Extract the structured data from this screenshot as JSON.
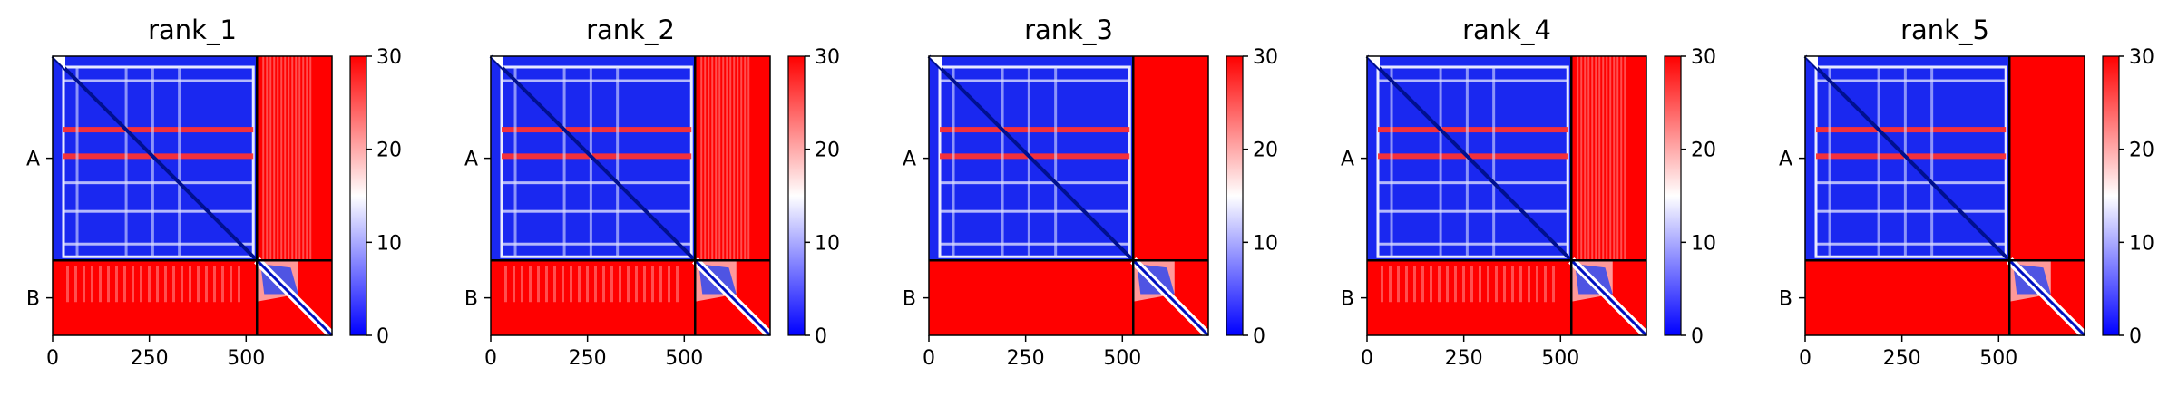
{
  "chart_data": [
    {
      "type": "heatmap",
      "title": "rank_1",
      "x_ticks": [
        0,
        250,
        500
      ],
      "xlim": [
        0,
        722
      ],
      "y_tick_labels": [
        "A",
        "B"
      ],
      "chain_boundary": 528,
      "colorbar": {
        "ticks": [
          0,
          10,
          20,
          30
        ],
        "range": [
          0,
          30
        ],
        "colors": [
          "#0000ff",
          "#ffffff",
          "#ff0000"
        ]
      },
      "chain_A_lines": [
        0.12,
        0.36,
        0.49,
        0.62,
        0.76,
        0.92
      ],
      "inter_chain_pattern": "striped"
    },
    {
      "type": "heatmap",
      "title": "rank_2",
      "x_ticks": [
        0,
        250,
        500
      ],
      "xlim": [
        0,
        722
      ],
      "y_tick_labels": [
        "A",
        "B"
      ],
      "chain_boundary": 528,
      "colorbar": {
        "ticks": [
          0,
          10,
          20,
          30
        ],
        "range": [
          0,
          30
        ],
        "colors": [
          "#0000ff",
          "#ffffff",
          "#ff0000"
        ]
      },
      "chain_A_lines": [
        0.12,
        0.36,
        0.49,
        0.62,
        0.76,
        0.92
      ],
      "inter_chain_pattern": "striped"
    },
    {
      "type": "heatmap",
      "title": "rank_3",
      "x_ticks": [
        0,
        250,
        500
      ],
      "xlim": [
        0,
        722
      ],
      "y_tick_labels": [
        "A",
        "B"
      ],
      "chain_boundary": 528,
      "colorbar": {
        "ticks": [
          0,
          10,
          20,
          30
        ],
        "range": [
          0,
          30
        ],
        "colors": [
          "#0000ff",
          "#ffffff",
          "#ff0000"
        ]
      },
      "chain_A_lines": [
        0.12,
        0.36,
        0.49,
        0.62,
        0.76,
        0.92
      ],
      "inter_chain_pattern": "solid"
    },
    {
      "type": "heatmap",
      "title": "rank_4",
      "x_ticks": [
        0,
        250,
        500
      ],
      "xlim": [
        0,
        722
      ],
      "y_tick_labels": [
        "A",
        "B"
      ],
      "chain_boundary": 528,
      "colorbar": {
        "ticks": [
          0,
          10,
          20,
          30
        ],
        "range": [
          0,
          30
        ],
        "colors": [
          "#0000ff",
          "#ffffff",
          "#ff0000"
        ]
      },
      "chain_A_lines": [
        0.12,
        0.36,
        0.49,
        0.62,
        0.76,
        0.92
      ],
      "inter_chain_pattern": "striped"
    },
    {
      "type": "heatmap",
      "title": "rank_5",
      "x_ticks": [
        0,
        250,
        500
      ],
      "xlim": [
        0,
        722
      ],
      "y_tick_labels": [
        "A",
        "B"
      ],
      "chain_boundary": 528,
      "colorbar": {
        "ticks": [
          0,
          10,
          20,
          30
        ],
        "range": [
          0,
          30
        ],
        "colors": [
          "#0000ff",
          "#ffffff",
          "#ff0000"
        ]
      },
      "chain_A_lines": [
        0.12,
        0.36,
        0.49,
        0.62,
        0.76,
        0.92
      ],
      "inter_chain_pattern": "solid"
    }
  ]
}
